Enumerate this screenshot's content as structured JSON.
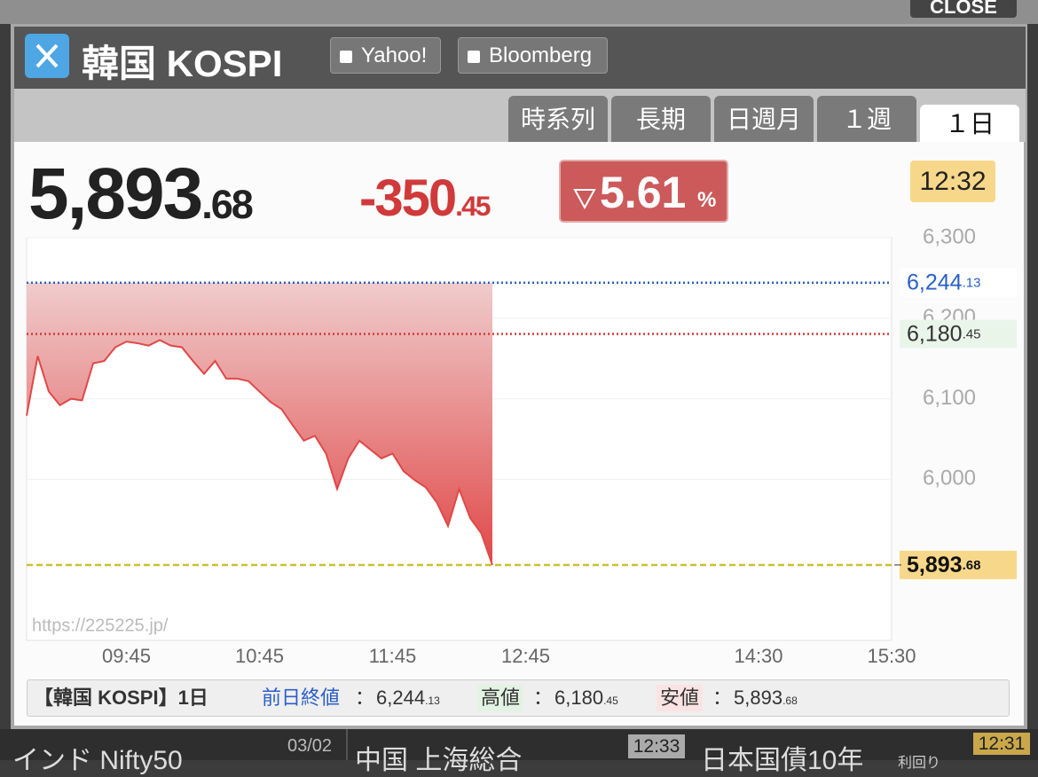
{
  "header": {
    "close": "CLOSE",
    "title": "韓国 KOSPI",
    "links": [
      "Yahoo!",
      "Bloomberg"
    ]
  },
  "tabs": [
    "時系列",
    "長期",
    "日週月",
    "１週",
    "１日"
  ],
  "quote": {
    "price": "5,893.68",
    "change": "-350.45",
    "percent": "5.61",
    "percent_unit": "%",
    "time": "12:32"
  },
  "chart_data": {
    "type": "line",
    "watermark": "https://225225.jp/",
    "color": "#e04848",
    "x": [
      "09:00",
      "09:05",
      "09:10",
      "09:15",
      "09:20",
      "09:25",
      "09:30",
      "09:35",
      "09:40",
      "09:45",
      "09:50",
      "09:55",
      "10:00",
      "10:05",
      "10:10",
      "10:15",
      "10:20",
      "10:25",
      "10:30",
      "10:35",
      "10:40",
      "10:45",
      "10:50",
      "10:55",
      "11:00",
      "11:05",
      "11:10",
      "11:15",
      "11:20",
      "11:25",
      "11:30",
      "11:35",
      "11:40",
      "11:45",
      "11:50",
      "11:55",
      "12:00",
      "12:05",
      "12:10",
      "12:15",
      "12:20",
      "12:25",
      "12:30"
    ],
    "values": [
      6079,
      6153,
      6109,
      6092,
      6100,
      6098,
      6144,
      6147,
      6164,
      6171,
      6169,
      6166,
      6173,
      6166,
      6164,
      6147,
      6131,
      6147,
      6125,
      6125,
      6122,
      6109,
      6096,
      6087,
      6067,
      6048,
      6054,
      6032,
      5988,
      6026,
      6048,
      6037,
      6026,
      6032,
      6010,
      5999,
      5990,
      5971,
      5942,
      5988,
      5952,
      5933,
      5893.68
    ],
    "xlim": [
      "09:00",
      "15:30"
    ],
    "xticks": [
      "09:45",
      "10:45",
      "11:45",
      "12:45",
      "14:30",
      "15:30"
    ],
    "ylim": [
      5800,
      6300
    ],
    "yticks": [
      {
        "value": 6000,
        "label": "6,000"
      },
      {
        "value": 6100,
        "label": "6,100"
      },
      {
        "value": 6200,
        "label": "6,200"
      },
      {
        "value": 6300,
        "label": "6,300"
      }
    ],
    "grid": true,
    "ref_lines": [
      {
        "value": 6244.13,
        "label": "6,244.13",
        "color": "#2a5fc7",
        "style": "dotted"
      },
      {
        "value": 6180.45,
        "label": "6,180.45",
        "color": "#d23a3a",
        "style": "dotted"
      },
      {
        "value": 5893.68,
        "label": "5,893.68",
        "color": "#c9c030",
        "style": "dashed"
      }
    ]
  },
  "footer": {
    "title": "【韓国 KOSPI】1日",
    "separator": "：",
    "labels": [
      "前日終値",
      "高値",
      "安値"
    ]
  },
  "ticker": {
    "items": [
      "インド Nifty50",
      "中国 上海総合",
      "日本国債10年"
    ],
    "sub": "利回り",
    "dates": [
      "03/02",
      "12:33",
      "12:31"
    ]
  }
}
